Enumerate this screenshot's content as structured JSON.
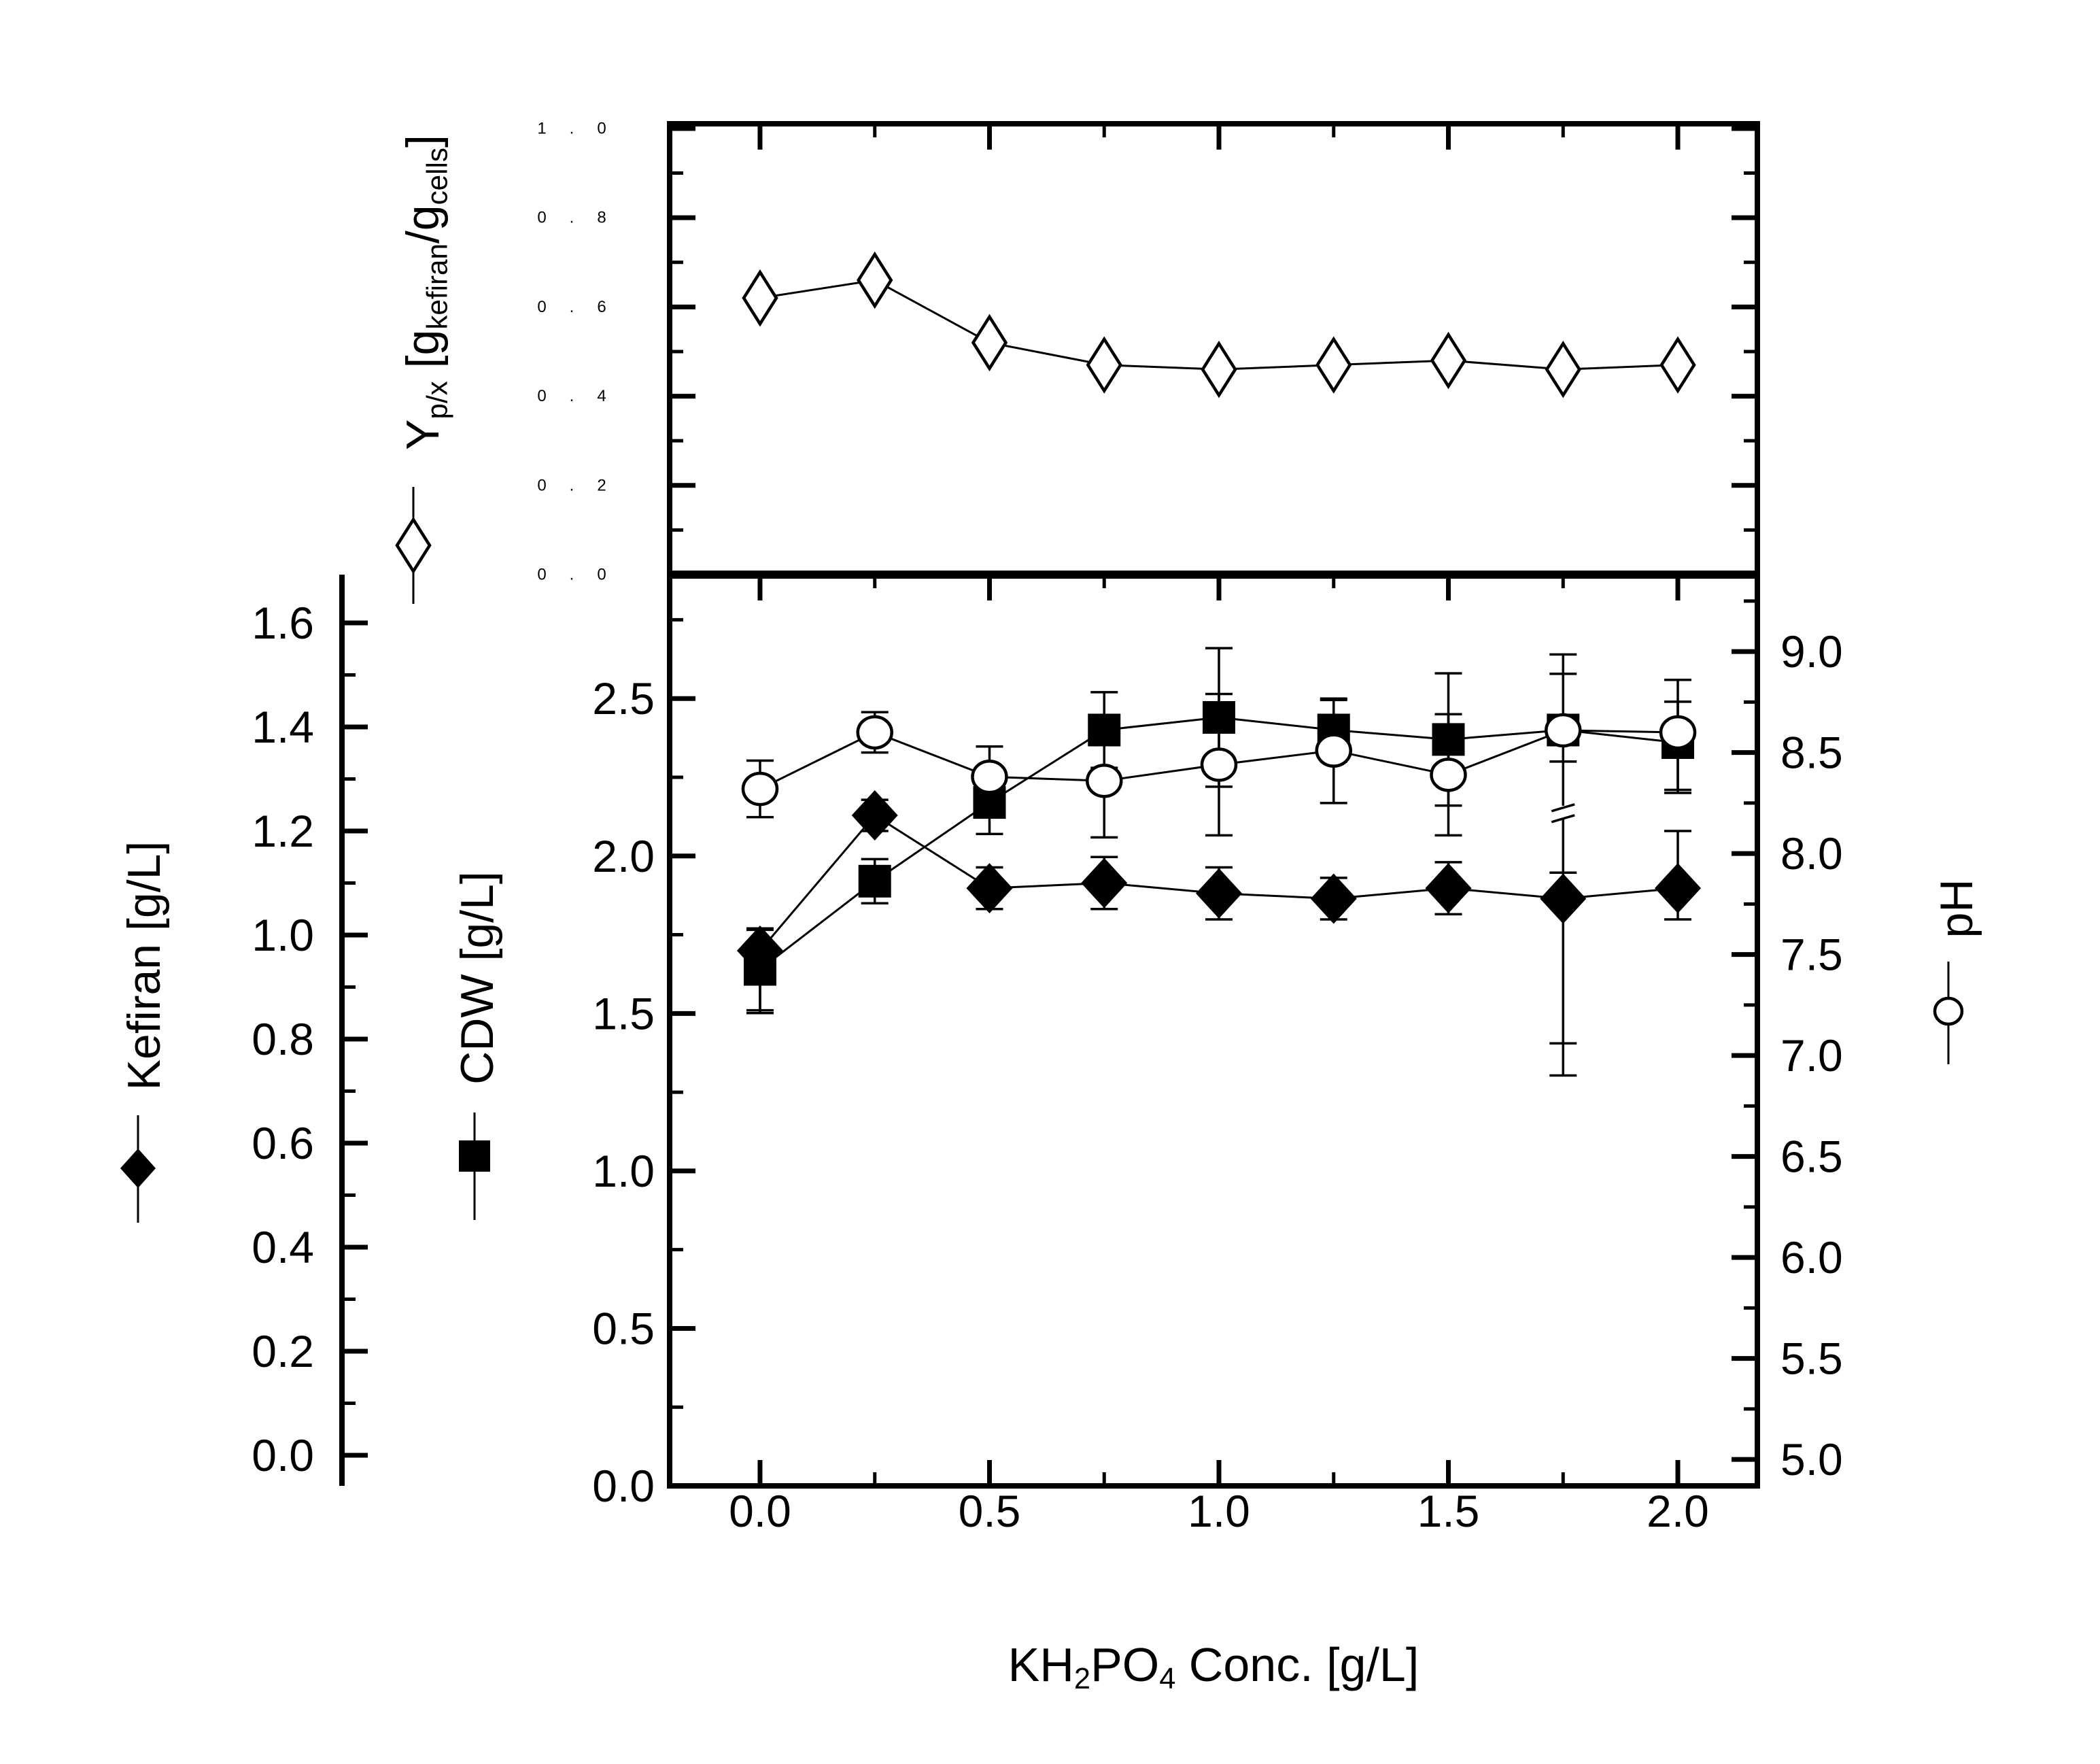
{
  "colors": {
    "foreground": "#000000",
    "background": "#ffffff"
  },
  "chart_data": {
    "type": "line",
    "x": [
      0.0,
      0.25,
      0.5,
      0.75,
      1.0,
      1.25,
      1.5,
      1.75,
      2.0
    ],
    "x_axis": {
      "title_parts": [
        {
          "t": "KH"
        },
        {
          "t": "2",
          "sub": true
        },
        {
          "t": "PO"
        },
        {
          "t": "4",
          "sub": true
        },
        {
          "t": " Conc. [g/L]"
        }
      ],
      "range": [
        -0.197,
        2.1733
      ],
      "major_step": 0.5,
      "minor_step": 0.25,
      "tick_labels": [
        {
          "v": 0.0,
          "t": "0.0"
        },
        {
          "v": 0.5,
          "t": "0.5"
        },
        {
          "v": 1.0,
          "t": "1.0"
        },
        {
          "v": 1.5,
          "t": "1.5"
        },
        {
          "v": 2.0,
          "t": "2.0"
        }
      ]
    },
    "panels": [
      {
        "id": "yield",
        "y_axis": {
          "range": [
            0,
            1.0106
          ],
          "major_step": 0.2,
          "minor_step": 0.1,
          "tick_labels": [
            {
              "v": 1.0,
              "t": "1.0"
            },
            {
              "v": 0.8,
              "t": "0.8"
            },
            {
              "v": 0.6,
              "t": "0.6"
            },
            {
              "v": 0.4,
              "t": "0.4"
            },
            {
              "v": 0.2,
              "t": "0.2"
            },
            {
              "v": 0.0,
              "t": "0.0"
            }
          ],
          "label_parts": [
            {
              "t": "Y"
            },
            {
              "t": "p/x",
              "sub": true
            },
            {
              "t": " [g"
            },
            {
              "t": "kefiran",
              "sub": true
            },
            {
              "t": "/g"
            },
            {
              "t": "cells",
              "sub": true
            },
            {
              "t": "]"
            }
          ]
        },
        "series": [
          {
            "name": "yield-Ypx",
            "marker": "diamond-open",
            "values": [
              0.62,
              0.66,
              0.52,
              0.47,
              0.46,
              0.47,
              0.48,
              0.46,
              0.47
            ]
          }
        ]
      },
      {
        "id": "main",
        "axes": {
          "cdw": {
            "title": "CDW [g/L]",
            "range": [
              0,
              2.8934
            ],
            "major_step": 0.5,
            "minor_step": 0.25,
            "tick_labels": [
              {
                "v": 2.5,
                "t": "2.5"
              },
              {
                "v": 2.0,
                "t": "2.0"
              },
              {
                "v": 1.5,
                "t": "1.5"
              },
              {
                "v": 1.0,
                "t": "1.0"
              },
              {
                "v": 0.5,
                "t": "0.5"
              },
              {
                "v": 0.0,
                "t": "0.0"
              }
            ]
          },
          "kefiran": {
            "title": "Kefiran [g/L]",
            "range": [
              -0.0588,
              1.6928
            ],
            "major_step": 0.2,
            "minor_step": 0.1,
            "tick_labels": [
              {
                "v": 1.6,
                "t": "1.6"
              },
              {
                "v": 1.4,
                "t": "1.4"
              },
              {
                "v": 1.2,
                "t": "1.2"
              },
              {
                "v": 1.0,
                "t": "1.0"
              },
              {
                "v": 0.8,
                "t": "0.8"
              },
              {
                "v": 0.6,
                "t": "0.6"
              },
              {
                "v": 0.4,
                "t": "0.4"
              },
              {
                "v": 0.2,
                "t": "0.2"
              },
              {
                "v": 0.0,
                "t": "0.0"
              }
            ]
          },
          "ph": {
            "title": "pH",
            "range": [
              4.869,
              9.381
            ],
            "major_step": 0.5,
            "minor_step": 0.25,
            "tick_labels": [
              {
                "v": 9.0,
                "t": "9.0"
              },
              {
                "v": 8.5,
                "t": "8.5"
              },
              {
                "v": 8.0,
                "t": "8.0"
              },
              {
                "v": 7.5,
                "t": "7.5"
              },
              {
                "v": 7.0,
                "t": "7.0"
              },
              {
                "v": 6.5,
                "t": "6.5"
              },
              {
                "v": 6.0,
                "t": "6.0"
              },
              {
                "v": 5.5,
                "t": "5.5"
              },
              {
                "v": 5.0,
                "t": "5.0"
              }
            ]
          }
        },
        "series": [
          {
            "name": "CDW",
            "axis": "cdw",
            "marker": "square-filled",
            "values": [
              1.64,
              1.92,
              2.17,
              2.4,
              2.44,
              2.4,
              2.37,
              2.4,
              2.36
            ],
            "err_up": [
              0.13,
              0.07,
              0.1,
              0.12,
              0.22,
              0.1,
              0.21,
              0.24,
              0.13
            ],
            "err_down": [
              0.13,
              0.07,
              0.1,
              0.12,
              0.22,
              0.1,
              0.21,
              0.1,
              0.15
            ]
          },
          {
            "name": "Kefiran",
            "axis": "kefiran",
            "marker": "diamond-filled",
            "values": [
              0.97,
              1.23,
              1.09,
              1.1,
              1.08,
              1.07,
              1.09,
              1.07,
              1.09
            ],
            "err_up": [
              0.04,
              0.03,
              0.04,
              0.05,
              0.05,
              0.04,
              0.05,
              0.05,
              0.11
            ],
            "err_down": [
              0.12,
              0.03,
              0.04,
              0.05,
              0.05,
              0.04,
              0.05,
              0.34,
              0.06
            ]
          },
          {
            "name": "pH",
            "axis": "ph",
            "marker": "circle-open",
            "values": [
              8.32,
              8.6,
              8.38,
              8.36,
              8.44,
              8.51,
              8.39,
              8.61,
              8.6
            ],
            "err_up": [
              0.14,
              0.1,
              0.15,
              0.28,
              0.35,
              0.25,
              0.3,
              0.28,
              0.26
            ],
            "err_down": [
              0.14,
              0.1,
              0.15,
              0.28,
              0.35,
              0.26,
              0.3,
              1.55,
              0.3
            ],
            "err_break": {
              "index": 7,
              "at": 8.23
            }
          }
        ]
      }
    ],
    "legend": [
      {
        "id": "yield",
        "marker": "diamond-open"
      },
      {
        "id": "kefiran",
        "marker": "diamond-filled"
      },
      {
        "id": "cdw",
        "marker": "square-filled"
      },
      {
        "id": "ph",
        "marker": "circle-open"
      }
    ]
  }
}
